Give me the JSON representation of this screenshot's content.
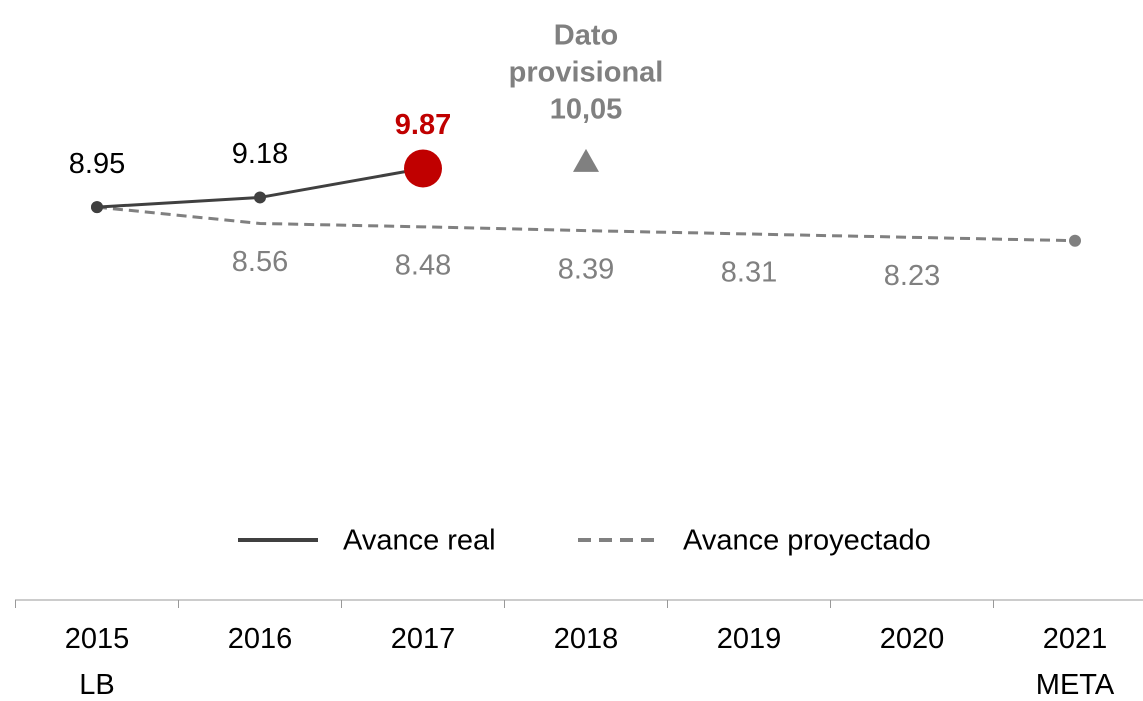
{
  "chart_data": {
    "type": "line",
    "categories": [
      "2015\nLB",
      "2016",
      "2017",
      "2018",
      "2019",
      "2020",
      "2021\nMETA"
    ],
    "series": [
      {
        "name": "Avance real",
        "color": "#404040",
        "dash": false,
        "highlight_color": "#c00000",
        "values": [
          8.95,
          9.18,
          9.87,
          null,
          null,
          null,
          null
        ]
      },
      {
        "name": "Avance proyectado",
        "color": "#808080",
        "dash": true,
        "values": [
          8.95,
          8.56,
          8.48,
          8.39,
          8.31,
          8.23,
          8.15
        ],
        "value_labels": [
          null,
          "8.56",
          "8.48",
          "8.39",
          "8.31",
          "8.23",
          null
        ]
      }
    ],
    "annotation": {
      "x": "2018",
      "text": [
        "Dato",
        "provisional"
      ],
      "value": 10.05,
      "value_label": "10,05",
      "color": "#808080"
    },
    "ylim": [
      6.5,
      10.5
    ],
    "legend": "bottom"
  }
}
